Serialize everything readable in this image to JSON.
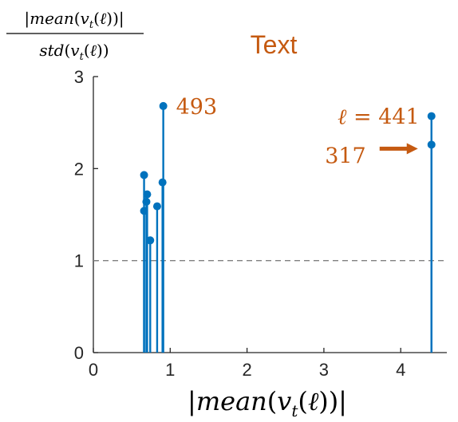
{
  "colors": {
    "stem": "#0072bd",
    "accent": "#c55a11",
    "axis": "#262626",
    "refline": "#808080"
  },
  "chart_data": {
    "type": "scatter",
    "style": "stem",
    "title": "Text",
    "ylabel": {
      "numerator": {
        "open": "|",
        "func": "mean",
        "arg_open": "(",
        "var": "v",
        "sub": "t",
        "inner_open": "(",
        "ell": "ℓ",
        "inner_close": ")",
        "arg_close": ")",
        "close": "|"
      },
      "denominator": {
        "func": "std",
        "arg_open": "(",
        "var": "v",
        "sub": "t",
        "inner_open": "(",
        "ell": "ℓ",
        "inner_close": ")",
        "arg_close": ")"
      }
    },
    "xlabel": {
      "open": "|",
      "func": "mean",
      "arg_open": "(",
      "var": "v",
      "sub": "t",
      "inner_open": "(",
      "ell": "ℓ",
      "inner_close": ")",
      "arg_close": ")",
      "close": "|"
    },
    "xlim": [
      0,
      4.6
    ],
    "ylim": [
      0,
      3
    ],
    "xticks": [
      0,
      1,
      2,
      3,
      4
    ],
    "yticks": [
      0,
      1,
      2,
      3
    ],
    "xtick_labels": [
      "0",
      "1",
      "2",
      "3",
      "4"
    ],
    "ytick_labels": [
      "0",
      "1",
      "2",
      "3"
    ],
    "reference_line": {
      "y": 1,
      "style": "dashed"
    },
    "grid": false,
    "points": [
      {
        "x": 0.66,
        "y": 1.93
      },
      {
        "x": 0.66,
        "y": 1.54
      },
      {
        "x": 0.69,
        "y": 1.64
      },
      {
        "x": 0.7,
        "y": 1.72
      },
      {
        "x": 0.74,
        "y": 1.22
      },
      {
        "x": 0.83,
        "y": 1.59
      },
      {
        "x": 0.9,
        "y": 1.85
      },
      {
        "x": 0.91,
        "y": 2.68
      },
      {
        "x": 4.4,
        "y": 2.57
      },
      {
        "x": 4.4,
        "y": 2.26
      }
    ],
    "annotations": [
      {
        "text": "493",
        "x": 0.91,
        "y": 2.68
      },
      {
        "ell": "ℓ",
        "equals": " = ",
        "number": "441",
        "x": 4.4,
        "y": 2.57
      },
      {
        "text": "317",
        "x": 4.4,
        "y": 2.26,
        "arrow": true
      }
    ]
  }
}
